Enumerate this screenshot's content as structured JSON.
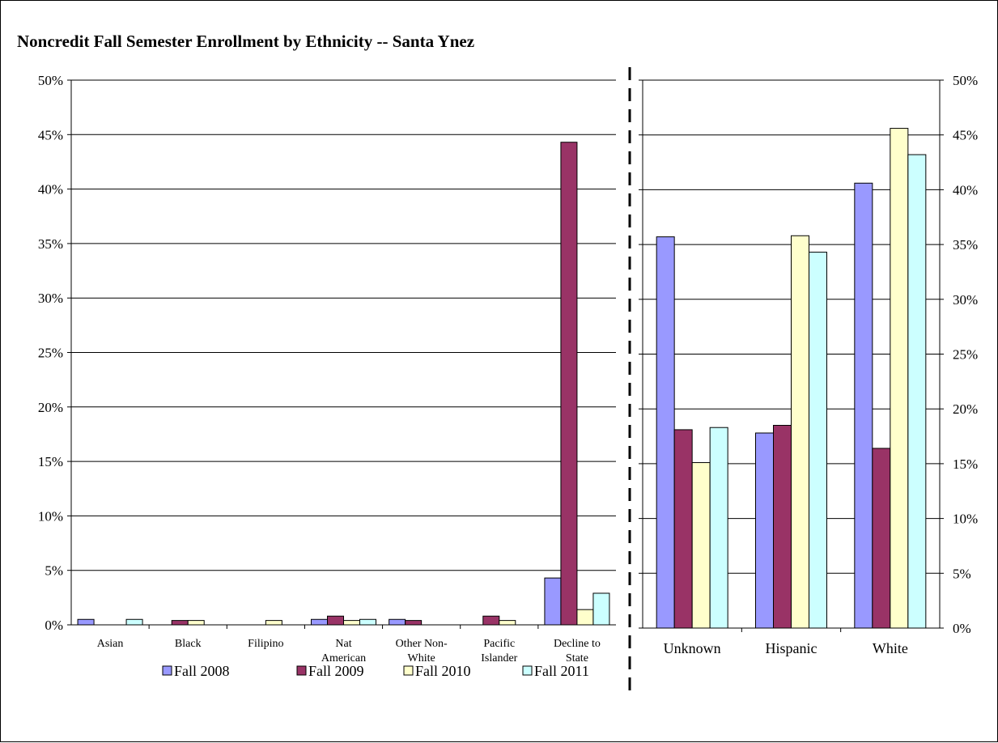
{
  "chart_data": {
    "type": "bar",
    "title": "Noncredit Fall Semester Enrollment by Ethnicity -- Santa Ynez",
    "ylim": [
      0,
      0.5
    ],
    "y_ticks": [
      "0%",
      "5%",
      "10%",
      "15%",
      "20%",
      "25%",
      "30%",
      "35%",
      "40%",
      "45%",
      "50%"
    ],
    "grid": true,
    "legend_position": "bottom",
    "colors": [
      "#9999ff",
      "#993366",
      "#ffffcc",
      "#ccffff"
    ],
    "series_names": [
      "Fall 2008",
      "Fall 2009",
      "Fall 2010",
      "Fall 2011"
    ],
    "panels": [
      {
        "name": "left",
        "categories": [
          [
            "Asian"
          ],
          [
            "Black"
          ],
          [
            "Filipino"
          ],
          [
            "Nat",
            "American"
          ],
          [
            "Other Non-",
            "White"
          ],
          [
            "Pacific",
            "Islander"
          ],
          [
            "Decline to",
            "State"
          ]
        ],
        "series": [
          {
            "name": "Fall 2008",
            "values": [
              0.005,
              0.0,
              0.0,
              0.005,
              0.005,
              0.0,
              0.043
            ]
          },
          {
            "name": "Fall 2009",
            "values": [
              0.0,
              0.004,
              0.0,
              0.008,
              0.004,
              0.008,
              0.443
            ]
          },
          {
            "name": "Fall 2010",
            "values": [
              0.0,
              0.004,
              0.004,
              0.004,
              0.0,
              0.004,
              0.014
            ]
          },
          {
            "name": "Fall 2011",
            "values": [
              0.005,
              0.0,
              0.0,
              0.005,
              0.0,
              0.0,
              0.029
            ]
          }
        ]
      },
      {
        "name": "right",
        "categories": [
          [
            "Unknown"
          ],
          [
            "Hispanic"
          ],
          [
            "White"
          ]
        ],
        "series": [
          {
            "name": "Fall 2008",
            "values": [
              0.357,
              0.178,
              0.406
            ]
          },
          {
            "name": "Fall 2009",
            "values": [
              0.181,
              0.185,
              0.164
            ]
          },
          {
            "name": "Fall 2010",
            "values": [
              0.151,
              0.358,
              0.456
            ]
          },
          {
            "name": "Fall 2011",
            "values": [
              0.183,
              0.343,
              0.432
            ]
          }
        ]
      }
    ]
  }
}
